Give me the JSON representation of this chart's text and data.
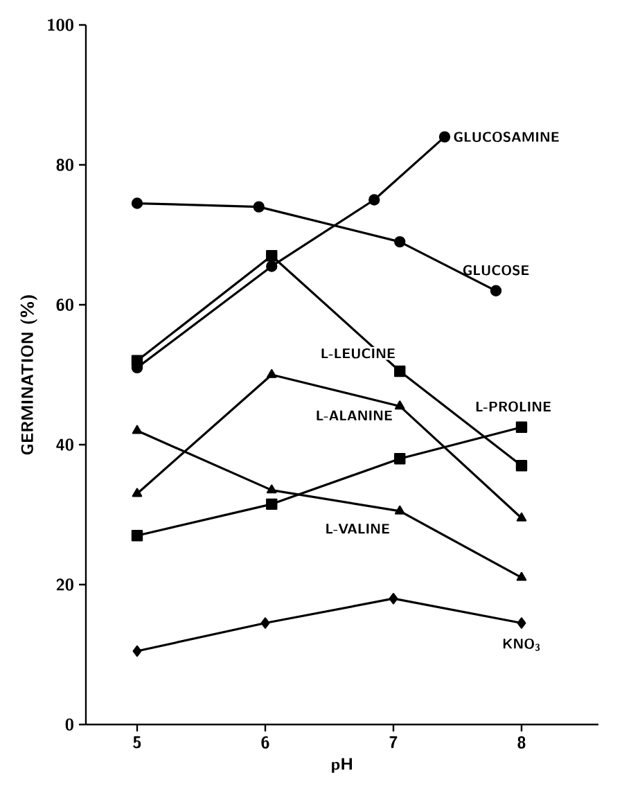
{
  "chart_data": {
    "type": "line",
    "xlabel": "pH",
    "ylabel": "GERMINATION (%)",
    "xlim": [
      4.6,
      8.6
    ],
    "xticks": [
      5,
      6,
      7,
      8
    ],
    "ylim": [
      0,
      100
    ],
    "yticks": [
      0,
      20,
      40,
      60,
      80,
      100
    ],
    "line_style": "solid",
    "series": [
      {
        "color": "#000000",
        "marker": "circle",
        "x": [
          5,
          6.05,
          6.85,
          7.4
        ],
        "values": [
          51,
          65.5,
          75,
          84
        ]
      },
      {
        "color": "#000000",
        "marker": "circle",
        "x": [
          5,
          5.95,
          7.05,
          7.8
        ],
        "values": [
          74.5,
          74,
          69,
          62
        ]
      },
      {
        "color": "#000000",
        "marker": "square",
        "x": [
          5,
          6.05,
          7.05,
          8
        ],
        "values": [
          52,
          67,
          50.5,
          37
        ]
      },
      {
        "color": "#000000",
        "marker": "triangle",
        "x": [
          5,
          6.05,
          7.05,
          8
        ],
        "values": [
          33,
          50,
          45.5,
          29.5
        ]
      },
      {
        "color": "#000000",
        "marker": "triangle",
        "x": [
          5,
          6.05,
          7.05,
          8
        ],
        "values": [
          42,
          33.5,
          30.5,
          21
        ]
      },
      {
        "color": "#000000",
        "marker": "square",
        "x": [
          5,
          6.05,
          7.05,
          8
        ],
        "values": [
          27,
          31.5,
          38,
          42.5
        ]
      },
      {
        "color": "#000000",
        "marker": "diamond",
        "x": [
          5,
          6,
          7,
          8
        ],
        "values": [
          10.5,
          14.5,
          18,
          14.5
        ]
      }
    ],
    "annotations": [
      {
        "text": "GLUCOSAMINE",
        "x": 7.4,
        "y": 84
      },
      {
        "text": "GLUCOSE",
        "x": 7.8,
        "y": 62
      },
      {
        "text": "L-LEUCINE",
        "x": 7.05,
        "y": 50.5
      },
      {
        "text": "L-ALANINE",
        "x": 7.05,
        "y": 45.5
      },
      {
        "text": "L-PROLINE",
        "x": 8,
        "y": 42.5
      },
      {
        "text": "L-VALINE",
        "x": 7.05,
        "y": 30.5
      },
      {
        "text": "KNO$_{3}$",
        "x": 8,
        "y": 14.5
      }
    ]
  }
}
